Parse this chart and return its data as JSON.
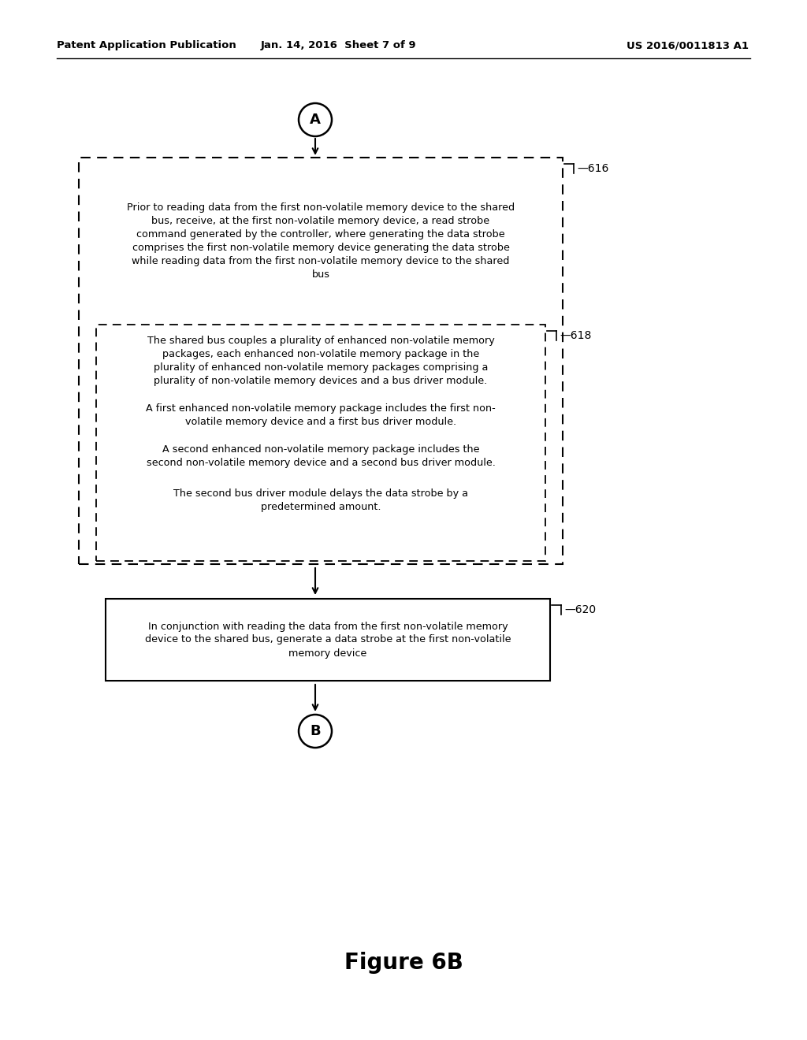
{
  "header_left": "Patent Application Publication",
  "header_mid": "Jan. 14, 2016  Sheet 7 of 9",
  "header_right": "US 2016/0011813 A1",
  "figure_label": "Figure 6B",
  "node_A_label": "A",
  "node_B_label": "B",
  "box616_label": "~616",
  "box618_label": "~618",
  "box620_label": "~620",
  "box616_text": "Prior to reading data from the first non-volatile memory device to the shared\nbus, receive, at the first non-volatile memory device, a read strobe\ncommand generated by the controller, where generating the data strobe\ncomprises the first non-volatile memory device generating the data strobe\nwhile reading data from the first non-volatile memory device to the shared\nbus",
  "box618_text1": "The shared bus couples a plurality of enhanced non-volatile memory\npackages, each enhanced non-volatile memory package in the\nplurality of enhanced non-volatile memory packages comprising a\nplurality of non-volatile memory devices and a bus driver module.",
  "box618_text2": "A first enhanced non-volatile memory package includes the first non-\nvolatile memory device and a first bus driver module.",
  "box618_text3": "A second enhanced non-volatile memory package includes the\nsecond non-volatile memory device and a second bus driver module.",
  "box618_text4": "The second bus driver module delays the data strobe by a\npredetermined amount.",
  "box620_text": "In conjunction with reading the data from the first non-volatile memory\ndevice to the shared bus, generate a data strobe at the first non-volatile\nmemory device",
  "bg_color": "#ffffff",
  "text_color": "#000000"
}
